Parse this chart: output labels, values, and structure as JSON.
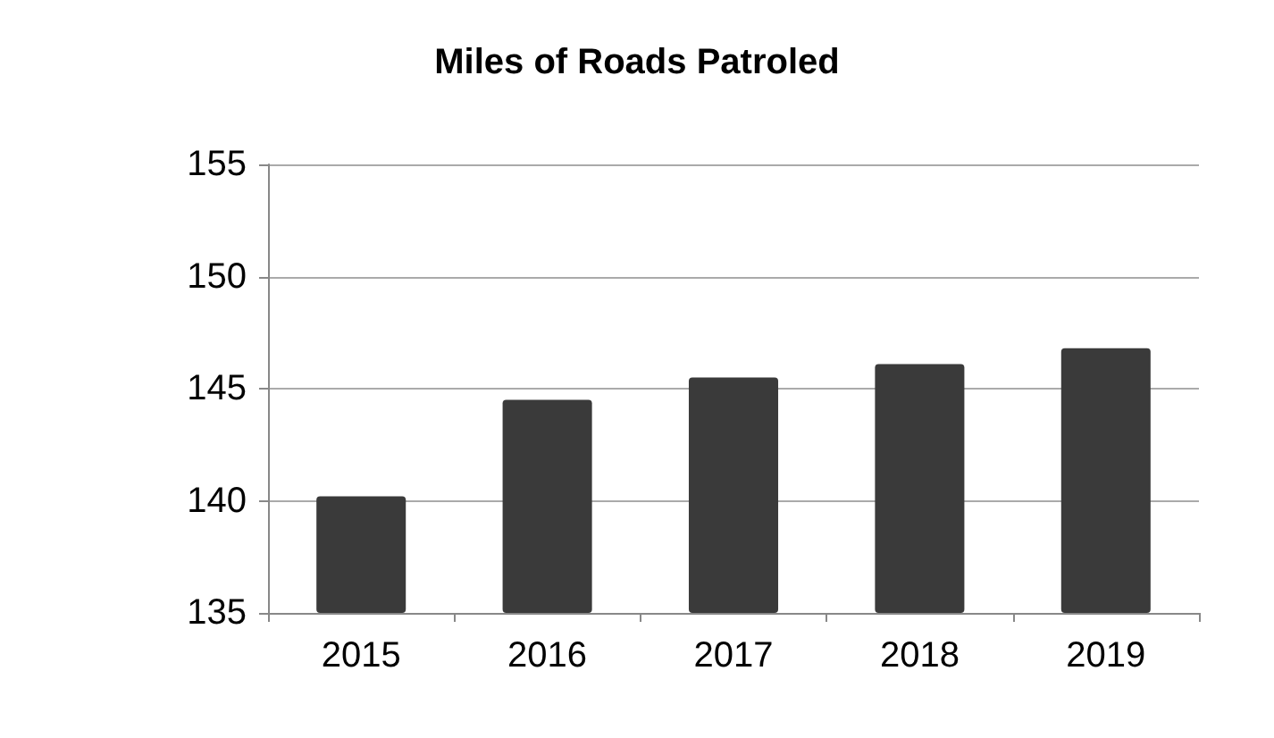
{
  "chart_data": {
    "type": "bar",
    "title": "Miles of Roads Patroled",
    "categories": [
      "2015",
      "2016",
      "2017",
      "2018",
      "2019"
    ],
    "values": [
      140.2,
      144.5,
      145.5,
      146.1,
      146.8
    ],
    "color": "#3a3a3a",
    "ylim": [
      135,
      155
    ],
    "yticks": [
      135,
      140,
      145,
      150,
      155
    ],
    "grid": "y"
  }
}
